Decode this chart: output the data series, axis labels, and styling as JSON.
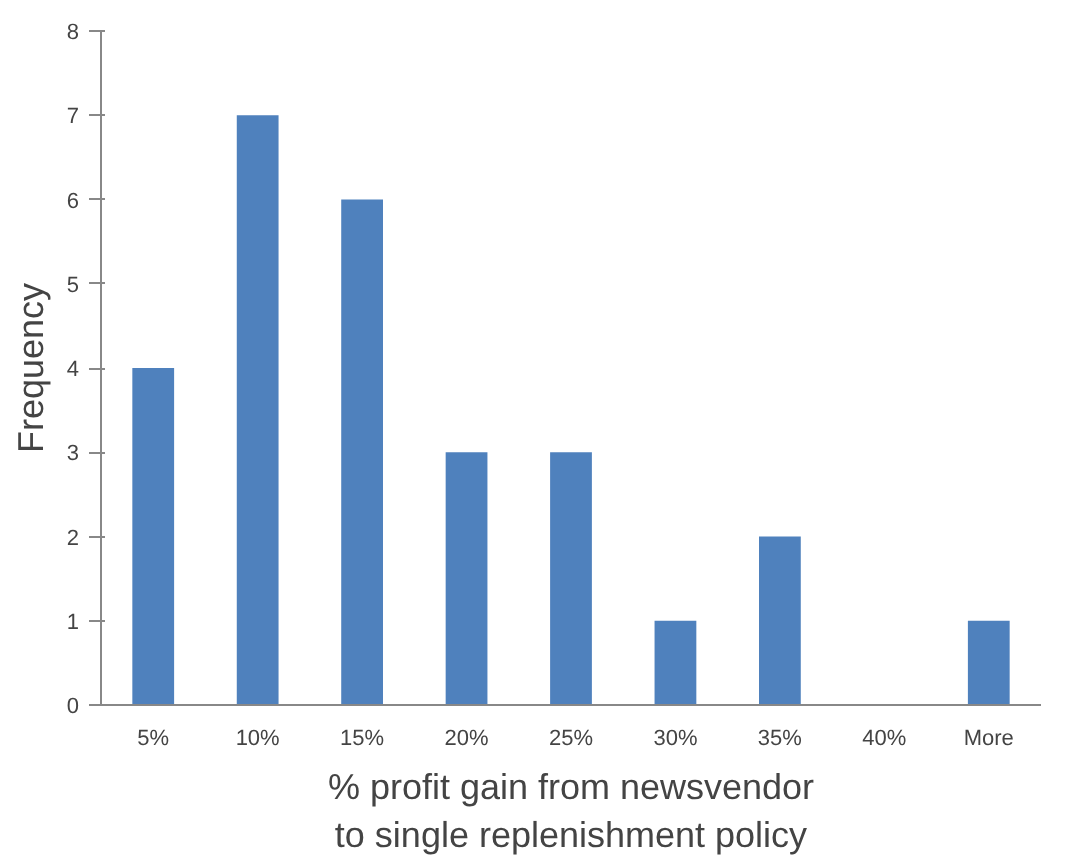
{
  "chart_data": {
    "type": "bar",
    "xlabel": "% profit gain from newsvendor to single replenishment policy",
    "ylabel": "Frequency",
    "categories": [
      "5%",
      "10%",
      "15%",
      "20%",
      "25%",
      "30%",
      "35%",
      "40%",
      "More"
    ],
    "values": [
      4,
      7,
      6,
      3,
      3,
      1,
      2,
      0,
      1
    ],
    "color": "#4f81bd",
    "ylim": [
      0,
      8
    ],
    "yticks": [
      0,
      1,
      2,
      3,
      4,
      5,
      6,
      7,
      8
    ],
    "grid": false
  }
}
